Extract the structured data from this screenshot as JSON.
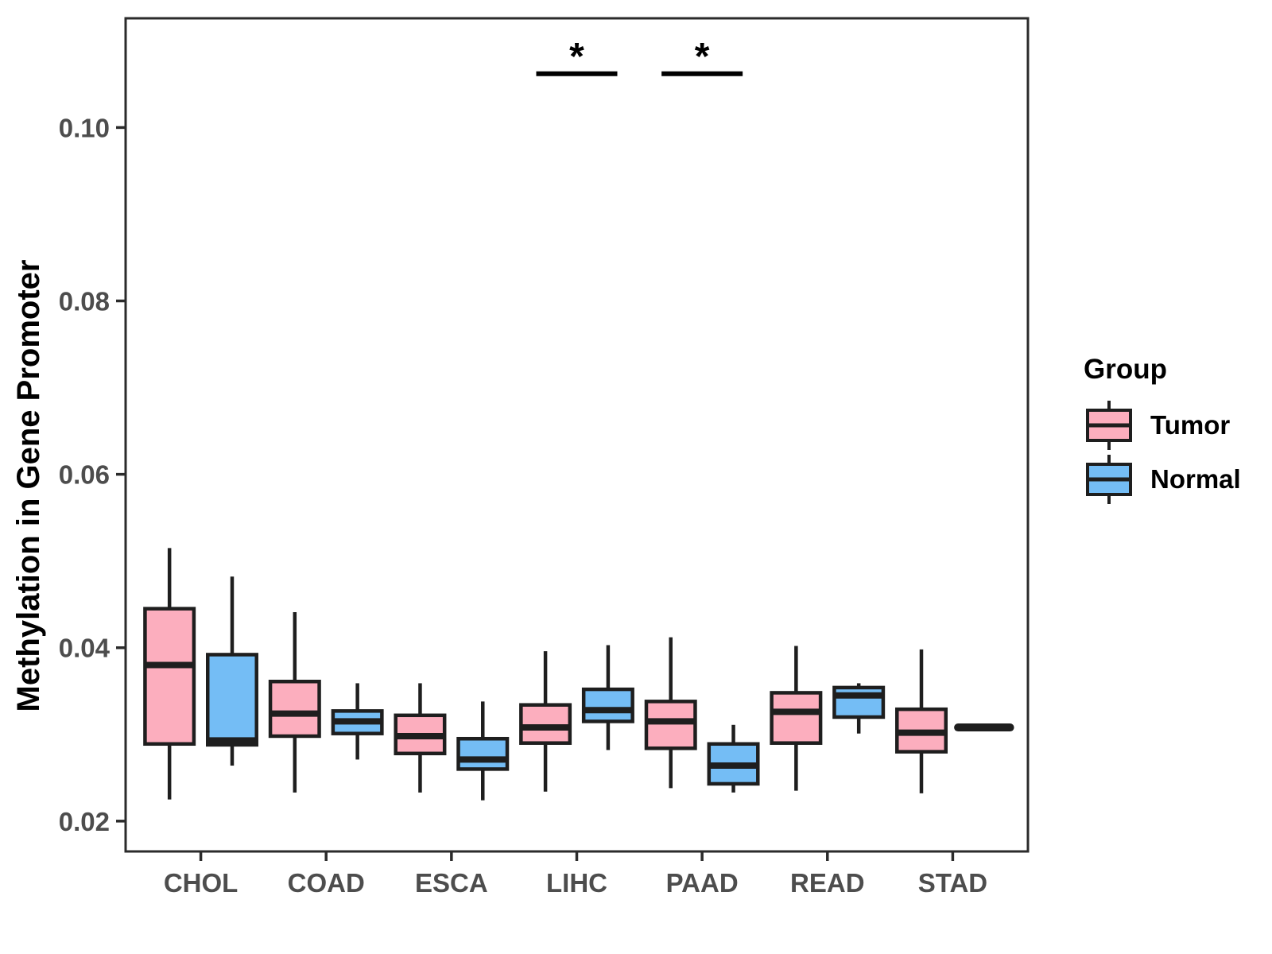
{
  "y_axis_title": "Methylation in Gene Promoter",
  "legend": {
    "title": "Group",
    "items": [
      {
        "label": "Tumor",
        "color": "#FCAEBE"
      },
      {
        "label": "Normal",
        "color": "#74BDF5"
      }
    ]
  },
  "chart_data": {
    "type": "grouped_boxplot",
    "title": "",
    "xlabel": "",
    "ylabel": "Methylation in Gene Promoter",
    "categories": [
      "CHOL",
      "COAD",
      "ESCA",
      "LIHC",
      "PAAD",
      "READ",
      "STAD"
    ],
    "groups": [
      "Tumor",
      "Normal"
    ],
    "group_colors": {
      "Tumor": "#FCAEBE",
      "Normal": "#74BDF5"
    },
    "stroke_color": "#1E1E1E",
    "panel_border_color": "#2B2B2B",
    "tick_label_color": "#4D4D4D",
    "ylim": [
      0.0165,
      0.1126
    ],
    "grid": "off",
    "legend_position": "right",
    "y_ticks": [
      {
        "value": 0.02,
        "label": "0.02"
      },
      {
        "value": 0.04,
        "label": "0.04"
      },
      {
        "value": 0.06,
        "label": "0.06"
      },
      {
        "value": 0.08,
        "label": "0.08"
      },
      {
        "value": 0.1,
        "label": "0.10"
      }
    ],
    "boxes": {
      "Tumor": [
        {
          "category": "CHOL",
          "whisker_low": 0.0225,
          "q1": 0.0289,
          "median": 0.038,
          "q3": 0.0445,
          "whisker_high": 0.0515
        },
        {
          "category": "COAD",
          "whisker_low": 0.0233,
          "q1": 0.0298,
          "median": 0.0324,
          "q3": 0.0361,
          "whisker_high": 0.0441
        },
        {
          "category": "ESCA",
          "whisker_low": 0.0233,
          "q1": 0.0278,
          "median": 0.0298,
          "q3": 0.0322,
          "whisker_high": 0.0359
        },
        {
          "category": "LIHC",
          "whisker_low": 0.0234,
          "q1": 0.029,
          "median": 0.0308,
          "q3": 0.0334,
          "whisker_high": 0.0396
        },
        {
          "category": "PAAD",
          "whisker_low": 0.0238,
          "q1": 0.0284,
          "median": 0.0315,
          "q3": 0.0338,
          "whisker_high": 0.0412
        },
        {
          "category": "READ",
          "whisker_low": 0.0235,
          "q1": 0.029,
          "median": 0.0326,
          "q3": 0.0348,
          "whisker_high": 0.0402
        },
        {
          "category": "STAD",
          "whisker_low": 0.0232,
          "q1": 0.028,
          "median": 0.0302,
          "q3": 0.0329,
          "whisker_high": 0.0398
        }
      ],
      "Normal": [
        {
          "category": "CHOL",
          "whisker_low": 0.0264,
          "q1": 0.0288,
          "median": 0.0293,
          "q3": 0.0392,
          "whisker_high": 0.0482
        },
        {
          "category": "COAD",
          "whisker_low": 0.0271,
          "q1": 0.0301,
          "median": 0.0315,
          "q3": 0.0327,
          "whisker_high": 0.0359
        },
        {
          "category": "ESCA",
          "whisker_low": 0.0224,
          "q1": 0.026,
          "median": 0.0271,
          "q3": 0.0295,
          "whisker_high": 0.0338
        },
        {
          "category": "LIHC",
          "whisker_low": 0.0282,
          "q1": 0.0315,
          "median": 0.0328,
          "q3": 0.0352,
          "whisker_high": 0.0403
        },
        {
          "category": "PAAD",
          "whisker_low": 0.0233,
          "q1": 0.0243,
          "median": 0.0264,
          "q3": 0.0289,
          "whisker_high": 0.0311
        },
        {
          "category": "READ",
          "whisker_low": 0.0301,
          "q1": 0.032,
          "median": 0.0345,
          "q3": 0.0354,
          "whisker_high": 0.0359
        },
        {
          "category": "STAD",
          "whisker_low": 0.0308,
          "q1": 0.0308,
          "median": 0.0308,
          "q3": 0.0308,
          "whisker_high": 0.0308
        }
      ]
    },
    "significance": [
      {
        "category": "LIHC",
        "label": "*",
        "y": 0.1062
      },
      {
        "category": "PAAD",
        "label": "*",
        "y": 0.1062
      }
    ]
  }
}
